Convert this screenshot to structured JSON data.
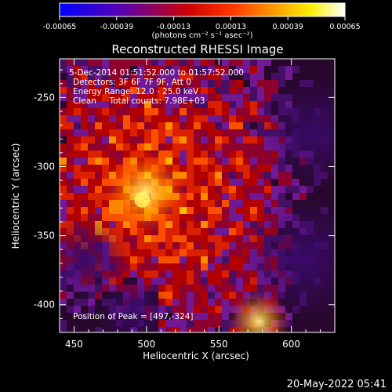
{
  "chart_data": {
    "type": "heatmap",
    "title": "Reconstructed RHESSI Image",
    "xlabel": "Heliocentric X (arcsec)",
    "ylabel": "Heliocentric Y (arcsec)",
    "xlim": [
      440,
      630
    ],
    "ylim": [
      -420,
      -222
    ],
    "x_ticks": [
      450,
      500,
      550,
      600
    ],
    "y_ticks": [
      -250,
      -300,
      -350,
      -400
    ],
    "colorbar": {
      "colormap": "heat (black-purple-red-yellow-white)",
      "range": [
        -0.00065,
        0.00065
      ],
      "tick_labels": [
        "-0.00065",
        "-0.00039",
        "-0.00013",
        "0.00013",
        "0.00039",
        "0.00065"
      ],
      "units_label": "(photons cm⁻² s⁻¹ asec⁻²)",
      "colors": [
        "#0000ff",
        "#6a00aa",
        "#ff0000",
        "#ff9900",
        "#ffff00",
        "#ffffff"
      ]
    },
    "peak": [
      497,
      -324
    ],
    "annotations": [
      "5-Dec-2014 01:51:52.000 to 01:57:52.000",
      "Detectors: 3F 6F 7F 9F, Att 0",
      "Energy Range: 12.0 - 25.0 keV",
      "Clean     Total counts: 7.98E+03"
    ],
    "peak_label": "Position of Peak = [497,-324]",
    "grid": false
  },
  "footer": {
    "timestamp": "20-May-2022 05:41"
  }
}
